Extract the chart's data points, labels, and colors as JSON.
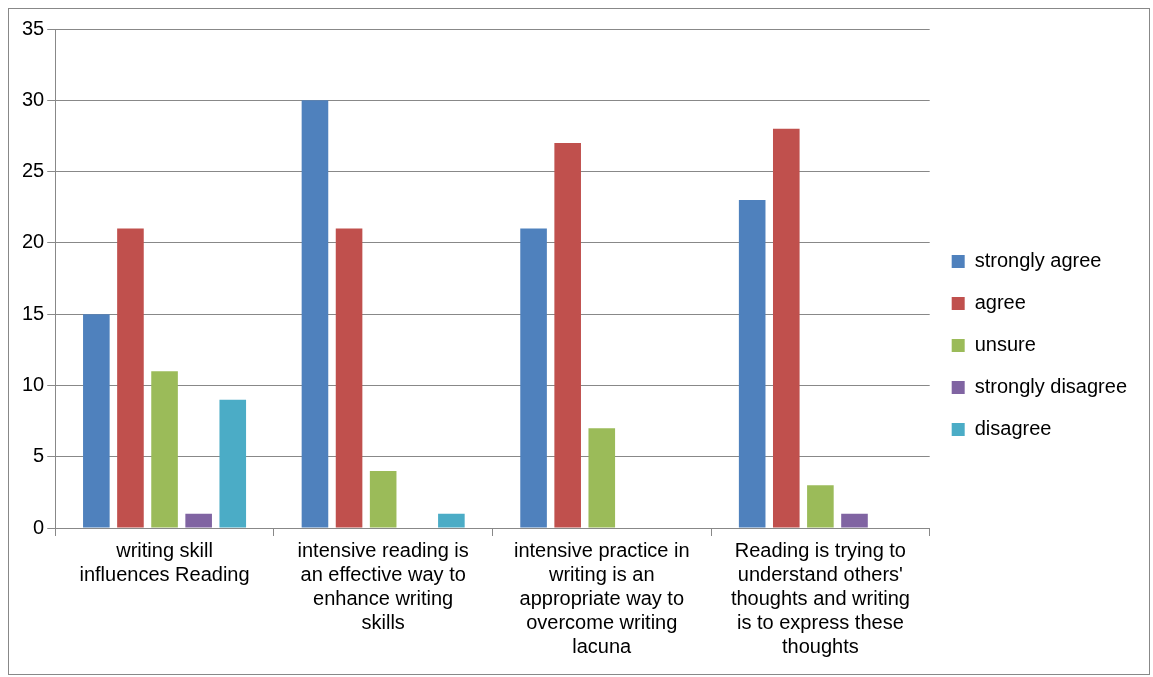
{
  "chart_data": {
    "type": "bar",
    "categories": [
      "writing skill influences Reading",
      "intensive reading is an effective way to enhance writing skills",
      "intensive practice in writing is an appropriate way to overcome writing lacuna",
      "Reading is trying to understand others' thoughts and writing is to express these thoughts"
    ],
    "series": [
      {
        "name": "strongly agree",
        "color": "#4f81bd",
        "values": [
          15,
          30,
          21,
          23
        ]
      },
      {
        "name": "agree",
        "color": "#c0504d",
        "values": [
          21,
          21,
          27,
          28
        ]
      },
      {
        "name": "unsure",
        "color": "#9bbb59",
        "values": [
          11,
          4,
          7,
          3
        ]
      },
      {
        "name": "strongly disagree",
        "color": "#8064a2",
        "values": [
          1,
          0,
          0,
          1
        ]
      },
      {
        "name": "disagree",
        "color": "#4bacc6",
        "values": [
          9,
          1,
          0,
          0
        ]
      }
    ],
    "ylim": [
      0,
      35
    ],
    "yticks": [
      0,
      5,
      10,
      15,
      20,
      25,
      30,
      35
    ],
    "grid": "y",
    "legend": "right"
  }
}
